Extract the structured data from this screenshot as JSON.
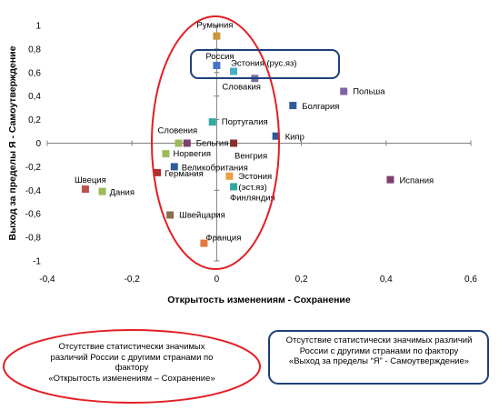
{
  "chart_data": {
    "type": "scatter",
    "xlabel": "Открытость изменениям - Сохранение",
    "ylabel": "Выход за пределы Я - Самоутверждение",
    "xlim": [
      -0.4,
      0.6
    ],
    "ylim": [
      -1,
      1
    ],
    "x_ticks": [
      "-0,4",
      "-0,2",
      "0",
      "0,2",
      "0,4",
      "0,6"
    ],
    "y_ticks": [
      "1",
      "0,8",
      "0,6",
      "0,4",
      "0,2",
      "0",
      "-0,2",
      "-0,4",
      "-0,6",
      "-0,8",
      "-1"
    ],
    "grid": false,
    "points": [
      {
        "label": "Румыния",
        "x": 0.0,
        "y": 0.91,
        "color": "#C8963C"
      },
      {
        "label": "Россия",
        "x": 0.0,
        "y": 0.66,
        "color": "#4472C4"
      },
      {
        "label": "Эстония (рус.яз)",
        "x": 0.04,
        "y": 0.61,
        "color": "#4BACC6"
      },
      {
        "label": "Словакия",
        "x": 0.09,
        "y": 0.55,
        "color": "#7F6F9F"
      },
      {
        "label": "Польша",
        "x": 0.3,
        "y": 0.44,
        "color": "#8064A2"
      },
      {
        "label": "Болгария",
        "x": 0.18,
        "y": 0.32,
        "color": "#2E5C9A"
      },
      {
        "label": "Португалия",
        "x": -0.01,
        "y": 0.18,
        "color": "#31A8A0"
      },
      {
        "label": "Кипр",
        "x": 0.14,
        "y": 0.06,
        "color": "#2E5C9A"
      },
      {
        "label": "Словения",
        "x": -0.09,
        "y": 0.0,
        "color": "#9BBB59"
      },
      {
        "label": "Бельгия",
        "x": -0.07,
        "y": 0.0,
        "color": "#7F3F6F"
      },
      {
        "label": "Венгрия",
        "x": 0.04,
        "y": 0.0,
        "color": "#8B2E2E"
      },
      {
        "label": "Норвегия",
        "x": -0.12,
        "y": -0.09,
        "color": "#9BBB59"
      },
      {
        "label": "Великобритания",
        "x": -0.1,
        "y": -0.2,
        "color": "#2E5C9A"
      },
      {
        "label": "Германия",
        "x": -0.14,
        "y": -0.25,
        "color": "#B02E2E"
      },
      {
        "label": "Эстония (эст.яз)",
        "x": 0.03,
        "y": -0.28,
        "color": "#E8A040"
      },
      {
        "label": "Финляндия",
        "x": 0.04,
        "y": -0.37,
        "color": "#31A8A0"
      },
      {
        "label": "Швеция",
        "x": -0.31,
        "y": -0.39,
        "color": "#C0504D"
      },
      {
        "label": "Дания",
        "x": -0.27,
        "y": -0.41,
        "color": "#9BBB59"
      },
      {
        "label": "Испания",
        "x": 0.41,
        "y": -0.31,
        "color": "#7F3F6F"
      },
      {
        "label": "Швейцария",
        "x": -0.11,
        "y": -0.61,
        "color": "#8B6F4E"
      },
      {
        "label": "Франция",
        "x": -0.03,
        "y": -0.85,
        "color": "#E67840"
      }
    ]
  },
  "notes": {
    "left": [
      "Отсутствие статистически значимых",
      "различий России с другими странами по",
      "фактору",
      "«Открытость изменениям – Сохранение»"
    ],
    "right": [
      "Отсутствие статистически значимых различий",
      "России с другими странами по фактору",
      "«Выход за пределы “Я” - Самоутверждение»"
    ]
  },
  "colors": {
    "ellipse": "#E31E24",
    "box": "#1F3F7A",
    "axis": "#808080"
  }
}
